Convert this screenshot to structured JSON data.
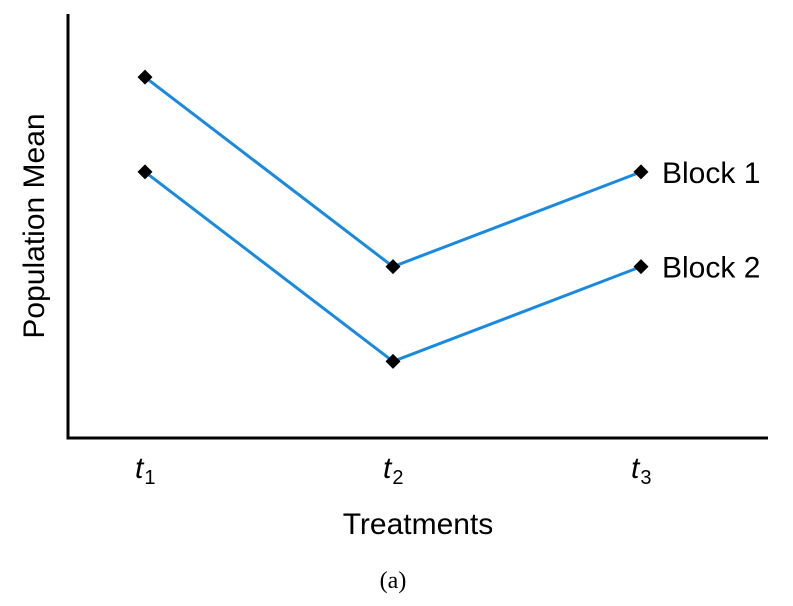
{
  "chart_data": {
    "type": "line",
    "title": "",
    "xlabel": "Treatments",
    "ylabel": "Population Mean",
    "caption": "(a)",
    "categories": [
      {
        "main": "t",
        "sub": "1"
      },
      {
        "main": "t",
        "sub": "2"
      },
      {
        "main": "t",
        "sub": "3"
      }
    ],
    "ylim": [
      0,
      10
    ],
    "grid": false,
    "legend": "end-of-line labels",
    "series": [
      {
        "name": "Block 1",
        "values": [
          9.6,
          4.6,
          7.1
        ],
        "color": "#1a8ae0"
      },
      {
        "name": "Block 2",
        "values": [
          7.1,
          2.1,
          4.6
        ],
        "color": "#1a8ae0"
      }
    ]
  }
}
